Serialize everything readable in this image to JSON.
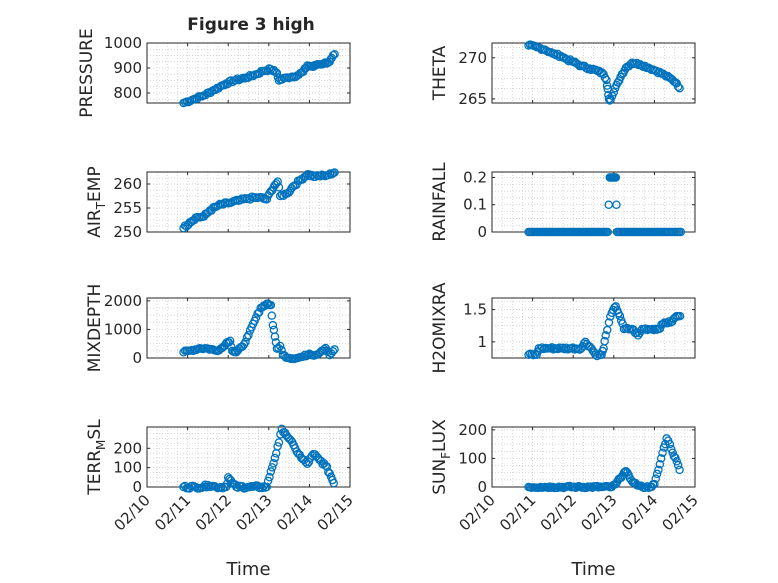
{
  "figure": {
    "title": "Figure 3 high"
  },
  "style": {
    "marker_color": "#0072BD",
    "grid_color": "#c8c8c8",
    "axis_color": "#262626"
  },
  "chart_data": [
    {
      "type": "scatter",
      "name": "pressure",
      "ylabel": "PRESSURE",
      "ylabel_sub": null,
      "xlim": [
        0,
        5
      ],
      "ylim": [
        760,
        1000
      ],
      "yticks": [
        800,
        900,
        1000
      ],
      "ytick_labels": [
        "800",
        "900",
        "1000"
      ],
      "xticks": [
        0,
        1,
        2,
        3,
        4,
        5
      ],
      "xtick_labels": [
        "02/10",
        "02/11",
        "02/12",
        "02/13",
        "02/14",
        "02/15"
      ],
      "show_xticklabels": false,
      "xlabel": "",
      "points": [
        [
          0.9,
          760
        ],
        [
          1.15,
          775
        ],
        [
          1.4,
          790
        ],
        [
          1.65,
          812
        ],
        [
          1.8,
          825
        ],
        [
          1.95,
          838
        ],
        [
          2.15,
          850
        ],
        [
          2.45,
          862
        ],
        [
          2.7,
          875
        ],
        [
          2.85,
          888
        ],
        [
          3.05,
          895
        ],
        [
          3.2,
          880
        ],
        [
          3.25,
          850
        ],
        [
          3.45,
          862
        ],
        [
          3.7,
          870
        ],
        [
          3.85,
          885
        ],
        [
          3.95,
          910
        ],
        [
          4.1,
          905
        ],
        [
          4.2,
          915
        ],
        [
          4.35,
          918
        ],
        [
          4.5,
          925
        ],
        [
          4.55,
          940
        ],
        [
          4.62,
          955
        ]
      ],
      "jitter": 5
    },
    {
      "type": "scatter",
      "name": "theta",
      "ylabel": "THETA",
      "ylabel_sub": null,
      "xlim": [
        0,
        5
      ],
      "ylim": [
        264.5,
        271.8
      ],
      "yticks": [
        265,
        270
      ],
      "ytick_labels": [
        "265",
        "270"
      ],
      "xticks": [
        0,
        1,
        2,
        3,
        4,
        5
      ],
      "xtick_labels": [
        "02/10",
        "02/11",
        "02/12",
        "02/13",
        "02/14",
        "02/15"
      ],
      "show_xticklabels": false,
      "xlabel": "",
      "points": [
        [
          0.9,
          271.5
        ],
        [
          1.1,
          271.3
        ],
        [
          1.3,
          271.0
        ],
        [
          1.5,
          270.5
        ],
        [
          1.7,
          270.2
        ],
        [
          1.85,
          269.8
        ],
        [
          2.0,
          269.5
        ],
        [
          2.2,
          269.0
        ],
        [
          2.4,
          268.7
        ],
        [
          2.6,
          268.4
        ],
        [
          2.75,
          268.0
        ],
        [
          2.82,
          267.3
        ],
        [
          2.85,
          266.2
        ],
        [
          2.88,
          265.0
        ],
        [
          2.92,
          264.9
        ],
        [
          3.0,
          265.8
        ],
        [
          3.1,
          267.0
        ],
        [
          3.2,
          268.0
        ],
        [
          3.3,
          268.8
        ],
        [
          3.45,
          269.4
        ],
        [
          3.65,
          269.2
        ],
        [
          3.85,
          268.8
        ],
        [
          4.05,
          268.4
        ],
        [
          4.25,
          267.9
        ],
        [
          4.45,
          267.3
        ],
        [
          4.55,
          266.9
        ],
        [
          4.62,
          266.3
        ]
      ],
      "jitter": 0.15
    },
    {
      "type": "scatter",
      "name": "air_temp",
      "ylabel": "AIR",
      "ylabel_sub": "T",
      "ylabel_tail": "EMP",
      "xlim": [
        0,
        5
      ],
      "ylim": [
        250,
        262.5
      ],
      "yticks": [
        250,
        255,
        260
      ],
      "ytick_labels": [
        "250",
        "255",
        "260"
      ],
      "xticks": [
        0,
        1,
        2,
        3,
        4,
        5
      ],
      "xtick_labels": [
        "02/10",
        "02/11",
        "02/12",
        "02/13",
        "02/14",
        "02/15"
      ],
      "show_xticklabels": false,
      "xlabel": "",
      "points": [
        [
          0.9,
          250.8
        ],
        [
          1.05,
          252.0
        ],
        [
          1.2,
          253.0
        ],
        [
          1.4,
          253.2
        ],
        [
          1.55,
          254.5
        ],
        [
          1.75,
          255.5
        ],
        [
          2.0,
          256.0
        ],
        [
          2.25,
          256.5
        ],
        [
          2.5,
          257.0
        ],
        [
          2.75,
          257.2
        ],
        [
          2.95,
          256.8
        ],
        [
          3.05,
          258.5
        ],
        [
          3.15,
          259.8
        ],
        [
          3.22,
          260.5
        ],
        [
          3.28,
          257.5
        ],
        [
          3.45,
          258.0
        ],
        [
          3.6,
          259.5
        ],
        [
          3.8,
          261.0
        ],
        [
          3.95,
          262.0
        ],
        [
          4.15,
          261.5
        ],
        [
          4.35,
          261.8
        ],
        [
          4.55,
          262.0
        ],
        [
          4.62,
          262.4
        ]
      ],
      "jitter": 0.3
    },
    {
      "type": "scatter",
      "name": "rainfall",
      "ylabel": "RAINFALL",
      "ylabel_sub": null,
      "xlim": [
        0,
        5
      ],
      "ylim": [
        0,
        0.22
      ],
      "yticks": [
        0,
        0.1,
        0.2
      ],
      "ytick_labels": [
        "0",
        "0.1",
        "0.2"
      ],
      "xticks": [
        0,
        1,
        2,
        3,
        4,
        5
      ],
      "xtick_labels": [
        "02/10",
        "02/11",
        "02/12",
        "02/13",
        "02/14",
        "02/15"
      ],
      "show_xticklabels": false,
      "xlabel": "",
      "points": [
        [
          0.9,
          0
        ],
        [
          1.2,
          0
        ],
        [
          1.5,
          0
        ],
        [
          1.8,
          0
        ],
        [
          2.1,
          0
        ],
        [
          2.4,
          0
        ],
        [
          2.7,
          0
        ],
        [
          2.85,
          0
        ],
        [
          2.9,
          0.2
        ],
        [
          2.95,
          0.2
        ],
        [
          3.0,
          0.2
        ],
        [
          3.05,
          0.2
        ],
        [
          3.08,
          0
        ],
        [
          3.3,
          0
        ],
        [
          3.6,
          0
        ],
        [
          3.9,
          0
        ],
        [
          4.2,
          0
        ],
        [
          4.45,
          0
        ],
        [
          4.65,
          0
        ]
      ],
      "jitter": 0
    },
    {
      "type": "scatter",
      "name": "mixdepth",
      "ylabel": "MIXDEPTH",
      "ylabel_sub": null,
      "xlim": [
        0,
        5
      ],
      "ylim": [
        0,
        2100
      ],
      "yticks": [
        0,
        1000,
        2000
      ],
      "ytick_labels": [
        "0",
        "1000",
        "2000"
      ],
      "xticks": [
        0,
        1,
        2,
        3,
        4,
        5
      ],
      "xtick_labels": [
        "02/10",
        "02/11",
        "02/12",
        "02/13",
        "02/14",
        "02/15"
      ],
      "show_xticklabels": false,
      "xlabel": "",
      "points": [
        [
          0.9,
          200
        ],
        [
          1.1,
          270
        ],
        [
          1.3,
          340
        ],
        [
          1.5,
          330
        ],
        [
          1.7,
          260
        ],
        [
          1.85,
          350
        ],
        [
          1.95,
          520
        ],
        [
          2.05,
          600
        ],
        [
          2.1,
          250
        ],
        [
          2.2,
          200
        ],
        [
          2.35,
          400
        ],
        [
          2.5,
          800
        ],
        [
          2.65,
          1300
        ],
        [
          2.8,
          1750
        ],
        [
          2.95,
          1900
        ],
        [
          3.05,
          1850
        ],
        [
          3.1,
          1150
        ],
        [
          3.15,
          750
        ],
        [
          3.2,
          330
        ],
        [
          3.28,
          420
        ],
        [
          3.35,
          100
        ],
        [
          3.5,
          0
        ],
        [
          3.7,
          0
        ],
        [
          3.85,
          50
        ],
        [
          4.0,
          150
        ],
        [
          4.15,
          100
        ],
        [
          4.3,
          250
        ],
        [
          4.4,
          350
        ],
        [
          4.5,
          100
        ],
        [
          4.62,
          300
        ]
      ],
      "jitter": 40
    },
    {
      "type": "scatter",
      "name": "h2omixra",
      "ylabel": "H2OMIXRA",
      "ylabel_sub": null,
      "xlim": [
        0,
        5
      ],
      "ylim": [
        0.75,
        1.68
      ],
      "yticks": [
        1,
        1.5
      ],
      "ytick_labels": [
        "1",
        "1.5"
      ],
      "xticks": [
        0,
        1,
        2,
        3,
        4,
        5
      ],
      "xtick_labels": [
        "02/10",
        "02/11",
        "02/12",
        "02/13",
        "02/14",
        "02/15"
      ],
      "show_xticklabels": false,
      "xlabel": "",
      "points": [
        [
          0.9,
          0.8
        ],
        [
          1.1,
          0.8
        ],
        [
          1.15,
          0.9
        ],
        [
          1.4,
          0.9
        ],
        [
          1.7,
          0.9
        ],
        [
          1.95,
          0.9
        ],
        [
          2.2,
          0.9
        ],
        [
          2.3,
          1.0
        ],
        [
          2.45,
          0.9
        ],
        [
          2.55,
          0.8
        ],
        [
          2.7,
          0.8
        ],
        [
          2.75,
          0.9
        ],
        [
          2.8,
          1.1
        ],
        [
          2.88,
          1.3
        ],
        [
          2.95,
          1.45
        ],
        [
          3.05,
          1.55
        ],
        [
          3.15,
          1.4
        ],
        [
          3.25,
          1.2
        ],
        [
          3.45,
          1.2
        ],
        [
          3.6,
          1.1
        ],
        [
          3.7,
          1.2
        ],
        [
          3.95,
          1.2
        ],
        [
          4.1,
          1.2
        ],
        [
          4.25,
          1.3
        ],
        [
          4.4,
          1.3
        ],
        [
          4.55,
          1.4
        ],
        [
          4.63,
          1.4
        ]
      ],
      "jitter": 0.02
    },
    {
      "type": "scatter",
      "name": "terr_msl",
      "ylabel": "TERR",
      "ylabel_sub": "M",
      "ylabel_tail": "SL",
      "xlim": [
        0,
        5
      ],
      "ylim": [
        0,
        310
      ],
      "yticks": [
        0,
        100,
        200
      ],
      "ytick_labels": [
        "0",
        "100",
        "200"
      ],
      "xticks": [
        0,
        1,
        2,
        3,
        4,
        5
      ],
      "xtick_labels": [
        "02/10",
        "02/11",
        "02/12",
        "02/13",
        "02/14",
        "02/15"
      ],
      "show_xticklabels": true,
      "xlabel": "Time",
      "points": [
        [
          0.9,
          0
        ],
        [
          1.2,
          0
        ],
        [
          1.4,
          0
        ],
        [
          1.5,
          10
        ],
        [
          1.7,
          0
        ],
        [
          1.95,
          0
        ],
        [
          2.0,
          50
        ],
        [
          2.1,
          20
        ],
        [
          2.2,
          0
        ],
        [
          2.5,
          0
        ],
        [
          2.8,
          0
        ],
        [
          2.95,
          0
        ],
        [
          3.05,
          80
        ],
        [
          3.15,
          150
        ],
        [
          3.25,
          230
        ],
        [
          3.32,
          300
        ],
        [
          3.4,
          280
        ],
        [
          3.5,
          250
        ],
        [
          3.65,
          200
        ],
        [
          3.8,
          150
        ],
        [
          3.95,
          120
        ],
        [
          4.1,
          170
        ],
        [
          4.25,
          140
        ],
        [
          4.4,
          110
        ],
        [
          4.5,
          70
        ],
        [
          4.6,
          20
        ]
      ],
      "jitter": 8
    },
    {
      "type": "scatter",
      "name": "sun_flux",
      "ylabel": "SUN",
      "ylabel_sub": "F",
      "ylabel_tail": "LUX",
      "xlim": [
        0,
        5
      ],
      "ylim": [
        0,
        210
      ],
      "yticks": [
        0,
        100,
        200
      ],
      "ytick_labels": [
        "0",
        "100",
        "200"
      ],
      "xticks": [
        0,
        1,
        2,
        3,
        4,
        5
      ],
      "xtick_labels": [
        "02/10",
        "02/11",
        "02/12",
        "02/13",
        "02/14",
        "02/15"
      ],
      "show_xticklabels": true,
      "xlabel": "Time",
      "points": [
        [
          0.9,
          0
        ],
        [
          1.2,
          0
        ],
        [
          1.5,
          0
        ],
        [
          1.8,
          0
        ],
        [
          2.1,
          0
        ],
        [
          2.4,
          0
        ],
        [
          2.7,
          0
        ],
        [
          2.95,
          0
        ],
        [
          3.05,
          10
        ],
        [
          3.15,
          30
        ],
        [
          3.25,
          50
        ],
        [
          3.3,
          55
        ],
        [
          3.4,
          30
        ],
        [
          3.5,
          15
        ],
        [
          3.6,
          5
        ],
        [
          3.7,
          0
        ],
        [
          3.9,
          0
        ],
        [
          4.0,
          10
        ],
        [
          4.1,
          60
        ],
        [
          4.2,
          120
        ],
        [
          4.3,
          170
        ],
        [
          4.38,
          150
        ],
        [
          4.45,
          120
        ],
        [
          4.55,
          90
        ],
        [
          4.62,
          60
        ]
      ],
      "jitter": 4
    }
  ]
}
